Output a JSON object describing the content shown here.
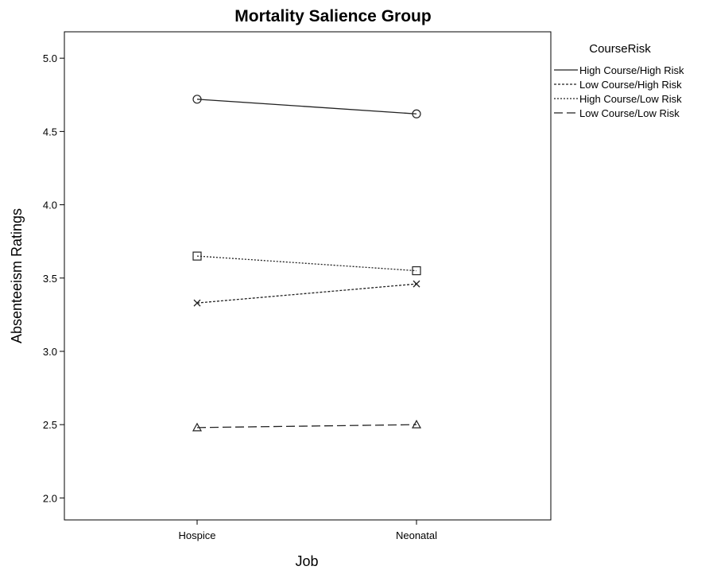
{
  "chart_data": {
    "type": "line",
    "title": "Mortality Salience Group",
    "xlabel": "Job",
    "ylabel": "Absenteeism Ratings",
    "categories": [
      "Hospice",
      "Neonatal"
    ],
    "ylim": [
      1.85,
      5.18
    ],
    "yticks": [
      "2.0",
      "2.5",
      "3.0",
      "3.5",
      "4.0",
      "4.5",
      "5.0"
    ],
    "ytick_values": [
      2.0,
      2.5,
      3.0,
      3.5,
      4.0,
      4.5,
      5.0
    ],
    "grid": false,
    "legend": {
      "title": "CourseRisk",
      "placement": "right"
    },
    "series": [
      {
        "name": "High Course/High Risk",
        "values": [
          4.72,
          4.62
        ],
        "marker": "circle",
        "dash": "solid"
      },
      {
        "name": "Low Course/High Risk",
        "values": [
          3.33,
          3.46
        ],
        "marker": "x",
        "dash": "short-dash"
      },
      {
        "name": "High Course/Low Risk",
        "values": [
          3.65,
          3.55
        ],
        "marker": "square",
        "dash": "dotted"
      },
      {
        "name": "Low Course/Low Risk",
        "values": [
          2.48,
          2.5
        ],
        "marker": "triangle",
        "dash": "long-dash"
      }
    ]
  }
}
